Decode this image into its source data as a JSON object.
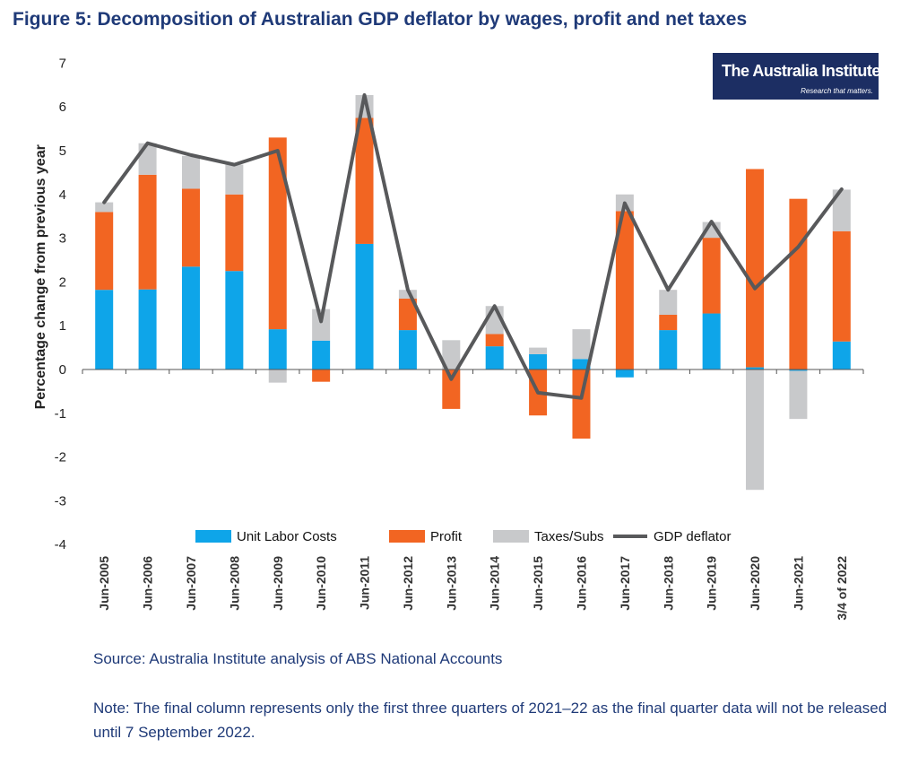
{
  "figure": {
    "title": "Figure 5: Decomposition of Australian GDP deflator by wages, profit and net taxes",
    "source": "Source: Australia Institute analysis of ABS National Accounts",
    "note": "Note: The final column represents only the first three quarters of 2021–22 as the final quarter data will not be released until 7 September 2022."
  },
  "logo": {
    "name": "The Australia Institute",
    "tagline": "Research that matters."
  },
  "chart_data": {
    "type": "bar",
    "stacked": true,
    "ylabel": "Percentage change from previous year",
    "xlabel": "",
    "ylim": [
      -4,
      7
    ],
    "yticks": [
      -4,
      -3,
      -2,
      -1,
      0,
      1,
      2,
      3,
      4,
      5,
      6,
      7
    ],
    "grid": false,
    "legend_position": "bottom",
    "categories": [
      "Jun-2005",
      "Jun-2006",
      "Jun-2007",
      "Jun-2008",
      "Jun-2009",
      "Jun-2010",
      "Jun-2011",
      "Jun-2012",
      "Jun-2013",
      "Jun-2014",
      "Jun-2015",
      "Jun-2016",
      "Jun-2017",
      "Jun-2018",
      "Jun-2019",
      "Jun-2020",
      "Jun-2021",
      "3/4 of 2022"
    ],
    "series": [
      {
        "name": "Unit Labor Costs",
        "kind": "bar",
        "color": "#0ea5e9",
        "values": [
          1.82,
          1.83,
          2.35,
          2.25,
          0.92,
          0.66,
          2.87,
          0.9,
          0.0,
          0.53,
          0.35,
          0.24,
          -0.18,
          0.9,
          1.28,
          0.05,
          -0.03,
          0.64
        ]
      },
      {
        "name": "Profit",
        "kind": "bar",
        "color": "#f26522",
        "values": [
          1.78,
          2.62,
          1.78,
          1.75,
          4.38,
          -0.28,
          2.88,
          0.72,
          -0.9,
          0.28,
          -1.05,
          -1.58,
          3.62,
          0.35,
          1.73,
          4.53,
          3.9,
          2.52
        ]
      },
      {
        "name": "Taxes/Subs",
        "kind": "bar",
        "color": "#c8c9cb",
        "values": [
          0.22,
          0.72,
          0.75,
          0.68,
          -0.3,
          0.72,
          0.52,
          0.2,
          0.67,
          0.64,
          0.15,
          0.68,
          0.38,
          0.57,
          0.36,
          -2.75,
          -1.1,
          0.95
        ]
      },
      {
        "name": "GDP deflator",
        "kind": "line",
        "color": "#58595b",
        "values": [
          3.82,
          5.17,
          4.9,
          4.68,
          5.0,
          1.1,
          6.27,
          1.82,
          -0.22,
          1.45,
          -0.53,
          -0.65,
          3.8,
          1.82,
          3.38,
          1.85,
          2.8,
          4.12
        ]
      }
    ]
  }
}
